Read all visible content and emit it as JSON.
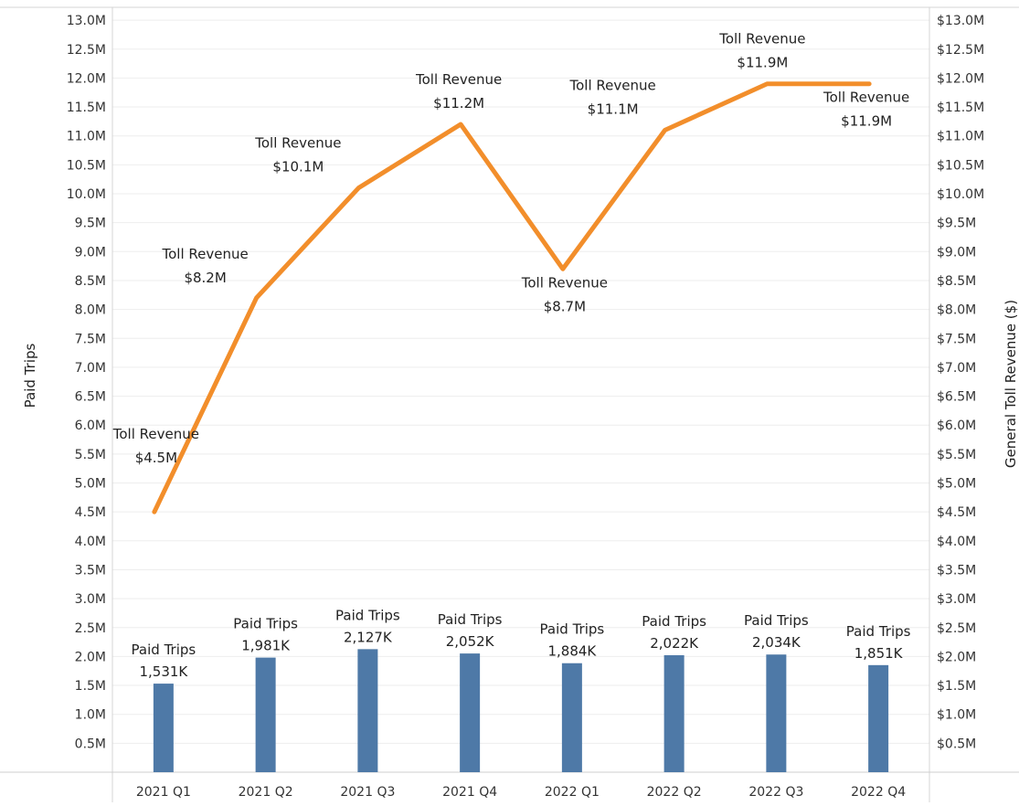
{
  "chart_data": {
    "type": "bar",
    "categories": [
      "2021 Q1",
      "2021 Q2",
      "2021 Q3",
      "2021 Q4",
      "2022 Q1",
      "2022 Q2",
      "2022 Q3",
      "2022 Q4"
    ],
    "y_left_label": "Paid Trips",
    "y_right_label": "General Toll Revenue ($)",
    "y_left_ticks": [
      "13.0M",
      "12.5M",
      "12.0M",
      "11.5M",
      "11.0M",
      "10.5M",
      "10.0M",
      "9.5M",
      "9.0M",
      "8.5M",
      "8.0M",
      "7.5M",
      "7.0M",
      "6.5M",
      "6.0M",
      "5.5M",
      "5.0M",
      "4.5M",
      "4.0M",
      "3.5M",
      "3.0M",
      "2.5M",
      "2.0M",
      "1.5M",
      "1.0M",
      "0.5M"
    ],
    "y_right_ticks": [
      "$13.0M",
      "$12.5M",
      "$12.0M",
      "$11.5M",
      "$11.0M",
      "$10.5M",
      "$10.0M",
      "$9.5M",
      "$9.0M",
      "$8.5M",
      "$8.0M",
      "$7.5M",
      "$7.0M",
      "$6.5M",
      "$6.0M",
      "$5.5M",
      "$5.0M",
      "$4.5M",
      "$4.0M",
      "$3.5M",
      "$3.0M",
      "$2.5M",
      "$2.0M",
      "$1.5M",
      "$1.0M",
      "$0.5M"
    ],
    "ylim": [
      0,
      13.0
    ],
    "series": [
      {
        "name": "Paid Trips",
        "type": "bar",
        "axis": "left",
        "color": "#4e79a7",
        "values": [
          1531000,
          1981000,
          2127000,
          2052000,
          1884000,
          2022000,
          2034000,
          1851000
        ],
        "labels": [
          "1,531K",
          "1,981K",
          "2,127K",
          "2,052K",
          "1,884K",
          "2,022K",
          "2,034K",
          "1,851K"
        ],
        "label_title": "Paid Trips"
      },
      {
        "name": "Toll Revenue",
        "type": "line",
        "axis": "right",
        "color": "#f28e2b",
        "values": [
          4500000,
          8200000,
          10100000,
          11200000,
          8700000,
          11100000,
          11900000,
          11900000
        ],
        "labels": [
          "$4.5M",
          "$8.2M",
          "$10.1M",
          "$11.2M",
          "$8.7M",
          "$11.1M",
          "$11.9M",
          "$11.9M"
        ],
        "label_title": "Toll Revenue"
      }
    ],
    "grid": true
  }
}
